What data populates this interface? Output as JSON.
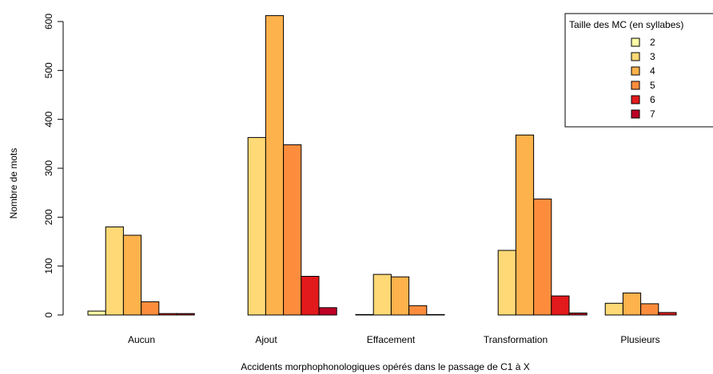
{
  "chart_data": {
    "type": "bar",
    "categories": [
      "Aucun",
      "Ajout",
      "Effacement",
      "Transformation",
      "Plusieurs"
    ],
    "series": [
      {
        "name": "2",
        "color": "#FFFFA8",
        "values": [
          8,
          0,
          1,
          0,
          0
        ]
      },
      {
        "name": "3",
        "color": "#FED976",
        "values": [
          180,
          363,
          83,
          132,
          24
        ]
      },
      {
        "name": "4",
        "color": "#FEB24C",
        "values": [
          163,
          612,
          78,
          368,
          45
        ]
      },
      {
        "name": "5",
        "color": "#FD8D3C",
        "values": [
          27,
          348,
          19,
          237,
          23
        ]
      },
      {
        "name": "6",
        "color": "#E31A1C",
        "values": [
          3,
          79,
          1,
          39,
          5
        ]
      },
      {
        "name": "7",
        "color": "#BD0026",
        "values": [
          3,
          15,
          0,
          4,
          0
        ]
      }
    ],
    "xlabel": "Accidents morphophonologiques opérés dans le passage de C1 à X",
    "ylabel": "Nombre de mots",
    "ylim": [
      0,
      620
    ],
    "yticks": [
      0,
      100,
      200,
      300,
      400,
      500,
      600
    ],
    "legend": {
      "title": "Taille des MC  (en syllabes)",
      "position": "top-right"
    },
    "grid": false
  }
}
